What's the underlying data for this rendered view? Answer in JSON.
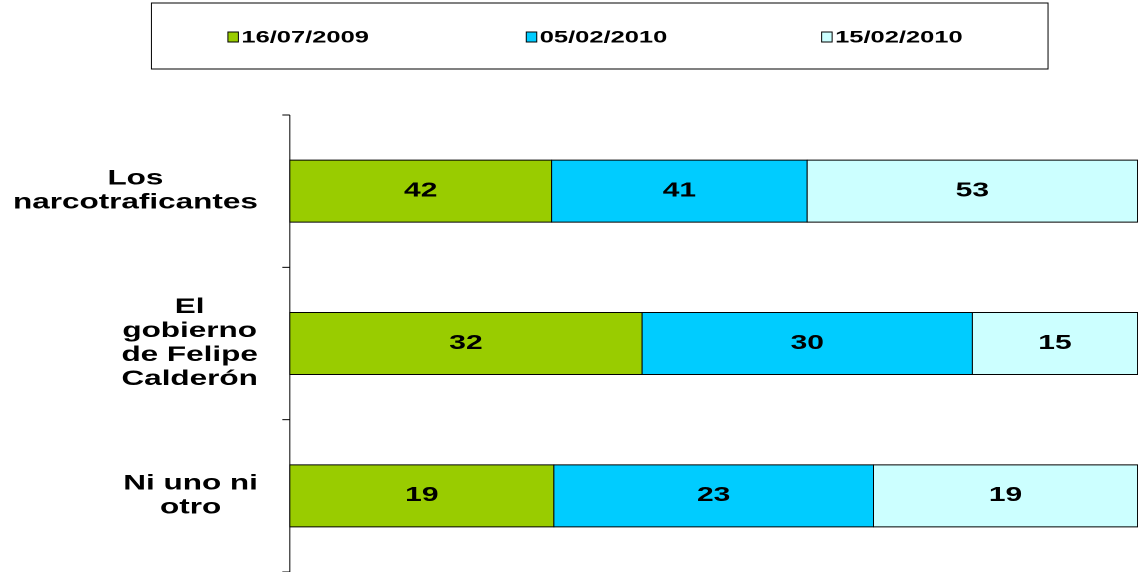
{
  "chart_data": {
    "type": "bar",
    "orientation": "horizontal",
    "stacking": "percent",
    "categories": [
      "Los narcotraficantes",
      "El gobierno de Felipe Calderón",
      "Ni uno ni otro"
    ],
    "series": [
      {
        "name": "16/07/2009",
        "color": "#99cc00",
        "values": [
          42,
          32,
          19
        ]
      },
      {
        "name": "05/02/2010",
        "color": "#00ccff",
        "values": [
          41,
          30,
          23
        ]
      },
      {
        "name": "15/02/2010",
        "color": "#ccffff",
        "values": [
          53,
          15,
          19
        ]
      }
    ],
    "legend": "top"
  }
}
